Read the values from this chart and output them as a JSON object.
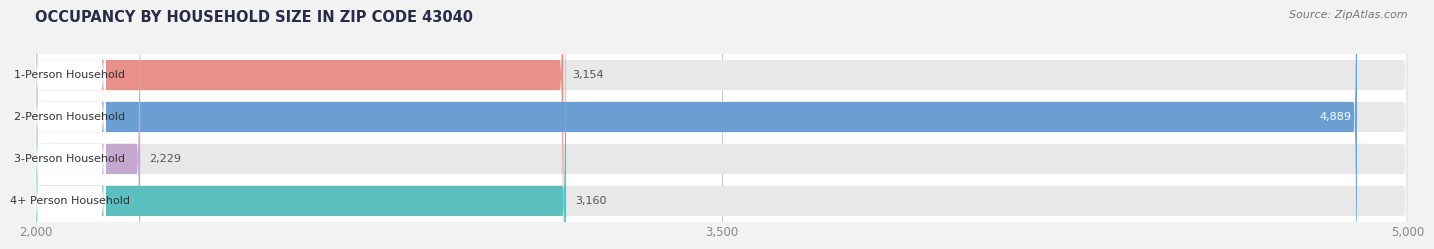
{
  "title": "OCCUPANCY BY HOUSEHOLD SIZE IN ZIP CODE 43040",
  "source": "Source: ZipAtlas.com",
  "categories": [
    "1-Person Household",
    "2-Person Household",
    "3-Person Household",
    "4+ Person Household"
  ],
  "values": [
    3154,
    4889,
    2229,
    3160
  ],
  "bar_colors": [
    "#E8908A",
    "#6B9FD4",
    "#C4A8D0",
    "#5BBFC0"
  ],
  "xmin": 2000,
  "xmax": 5000,
  "xticks": [
    2000,
    3500,
    5000
  ],
  "title_fontsize": 10.5,
  "source_fontsize": 8,
  "label_fontsize": 8,
  "value_fontsize": 8,
  "tick_fontsize": 8.5,
  "page_bg_color": "#f2f2f2",
  "chart_bg_color": "#ffffff",
  "bar_bg_color": "#e8e8e8",
  "title_color": "#2a2a4a",
  "source_color": "#777777",
  "tick_color": "#888888",
  "label_color": "#333333",
  "value_color_dark": "#555555",
  "value_color_light": "#ffffff",
  "grid_color": "#cccccc"
}
